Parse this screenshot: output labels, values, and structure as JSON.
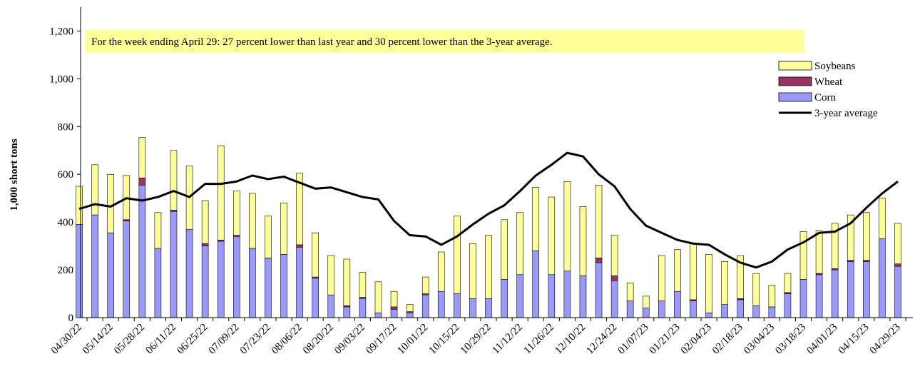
{
  "chart_data": {
    "type": "bar",
    "stacked": true,
    "annotation": "For the week ending April 29: 27 percent lower than last year and 30 percent lower than the 3-year average.",
    "y_label": "1,000 short tons",
    "categories": [
      "04/30/22",
      null,
      "05/14/22",
      null,
      "05/28/22",
      null,
      "06/11/22",
      null,
      "06/25/22",
      null,
      "07/09/22",
      null,
      "07/23/22",
      null,
      "08/06/22",
      null,
      "08/20/22",
      null,
      "09/03/22",
      null,
      "09/17/22",
      null,
      "10/01/22",
      null,
      "10/15/22",
      null,
      "10/29/22",
      null,
      "11/12/22",
      null,
      "11/26/22",
      null,
      "12/10/22",
      null,
      "12/24/22",
      null,
      "01/07/23",
      null,
      "01/21/23",
      null,
      "02/04/23",
      null,
      "02/18/23",
      null,
      "03/04/23",
      null,
      "03/18/23",
      null,
      "04/01/23",
      null,
      "04/15/23",
      null,
      "04/29/23"
    ],
    "series": [
      {
        "name": "Soybeans",
        "type": "bar",
        "color": "#ffff99",
        "values": [
          160,
          210,
          245,
          185,
          170,
          150,
          250,
          265,
          180,
          395,
          185,
          230,
          175,
          215,
          300,
          185,
          165,
          195,
          105,
          130,
          65,
          30,
          70,
          165,
          325,
          230,
          265,
          250,
          260,
          265,
          325,
          375,
          290,
          305,
          170,
          75,
          50,
          190,
          175,
          235,
          245,
          180,
          180,
          135,
          90,
          80,
          200,
          180,
          190,
          190,
          200,
          170,
          170
        ]
      },
      {
        "name": "Wheat",
        "type": "bar",
        "color": "#993366",
        "values": [
          0,
          0,
          0,
          5,
          30,
          0,
          5,
          0,
          10,
          5,
          5,
          0,
          0,
          0,
          10,
          5,
          0,
          5,
          5,
          0,
          10,
          5,
          5,
          0,
          0,
          0,
          0,
          0,
          0,
          0,
          0,
          0,
          0,
          20,
          20,
          0,
          0,
          0,
          0,
          5,
          0,
          0,
          5,
          0,
          0,
          5,
          0,
          5,
          5,
          5,
          5,
          0,
          10
        ]
      },
      {
        "name": "Corn",
        "type": "bar",
        "color": "#9999ff",
        "values": [
          390,
          430,
          355,
          405,
          555,
          290,
          445,
          370,
          300,
          320,
          340,
          290,
          250,
          265,
          295,
          165,
          95,
          45,
          80,
          20,
          35,
          20,
          95,
          110,
          100,
          80,
          80,
          160,
          180,
          280,
          180,
          195,
          175,
          230,
          155,
          70,
          40,
          70,
          110,
          70,
          20,
          55,
          75,
          50,
          45,
          100,
          160,
          180,
          200,
          235,
          235,
          330,
          215
        ]
      },
      {
        "name": "3-year average",
        "type": "line",
        "color": "#000000",
        "values": [
          455,
          475,
          465,
          500,
          490,
          505,
          530,
          505,
          560,
          560,
          570,
          595,
          580,
          590,
          565,
          540,
          545,
          525,
          505,
          495,
          405,
          345,
          340,
          305,
          340,
          390,
          435,
          470,
          530,
          595,
          640,
          690,
          675,
          600,
          550,
          455,
          385,
          355,
          325,
          310,
          305,
          265,
          230,
          210,
          235,
          285,
          315,
          355,
          360,
          395,
          460,
          520,
          570
        ]
      }
    ],
    "ylim": [
      0,
      1300
    ],
    "yticks": [
      0,
      200,
      400,
      600,
      800,
      {
        "value": 1000,
        "label": "1,000"
      },
      {
        "value": 1200,
        "label": "1,200"
      }
    ],
    "legend": "upper right"
  }
}
